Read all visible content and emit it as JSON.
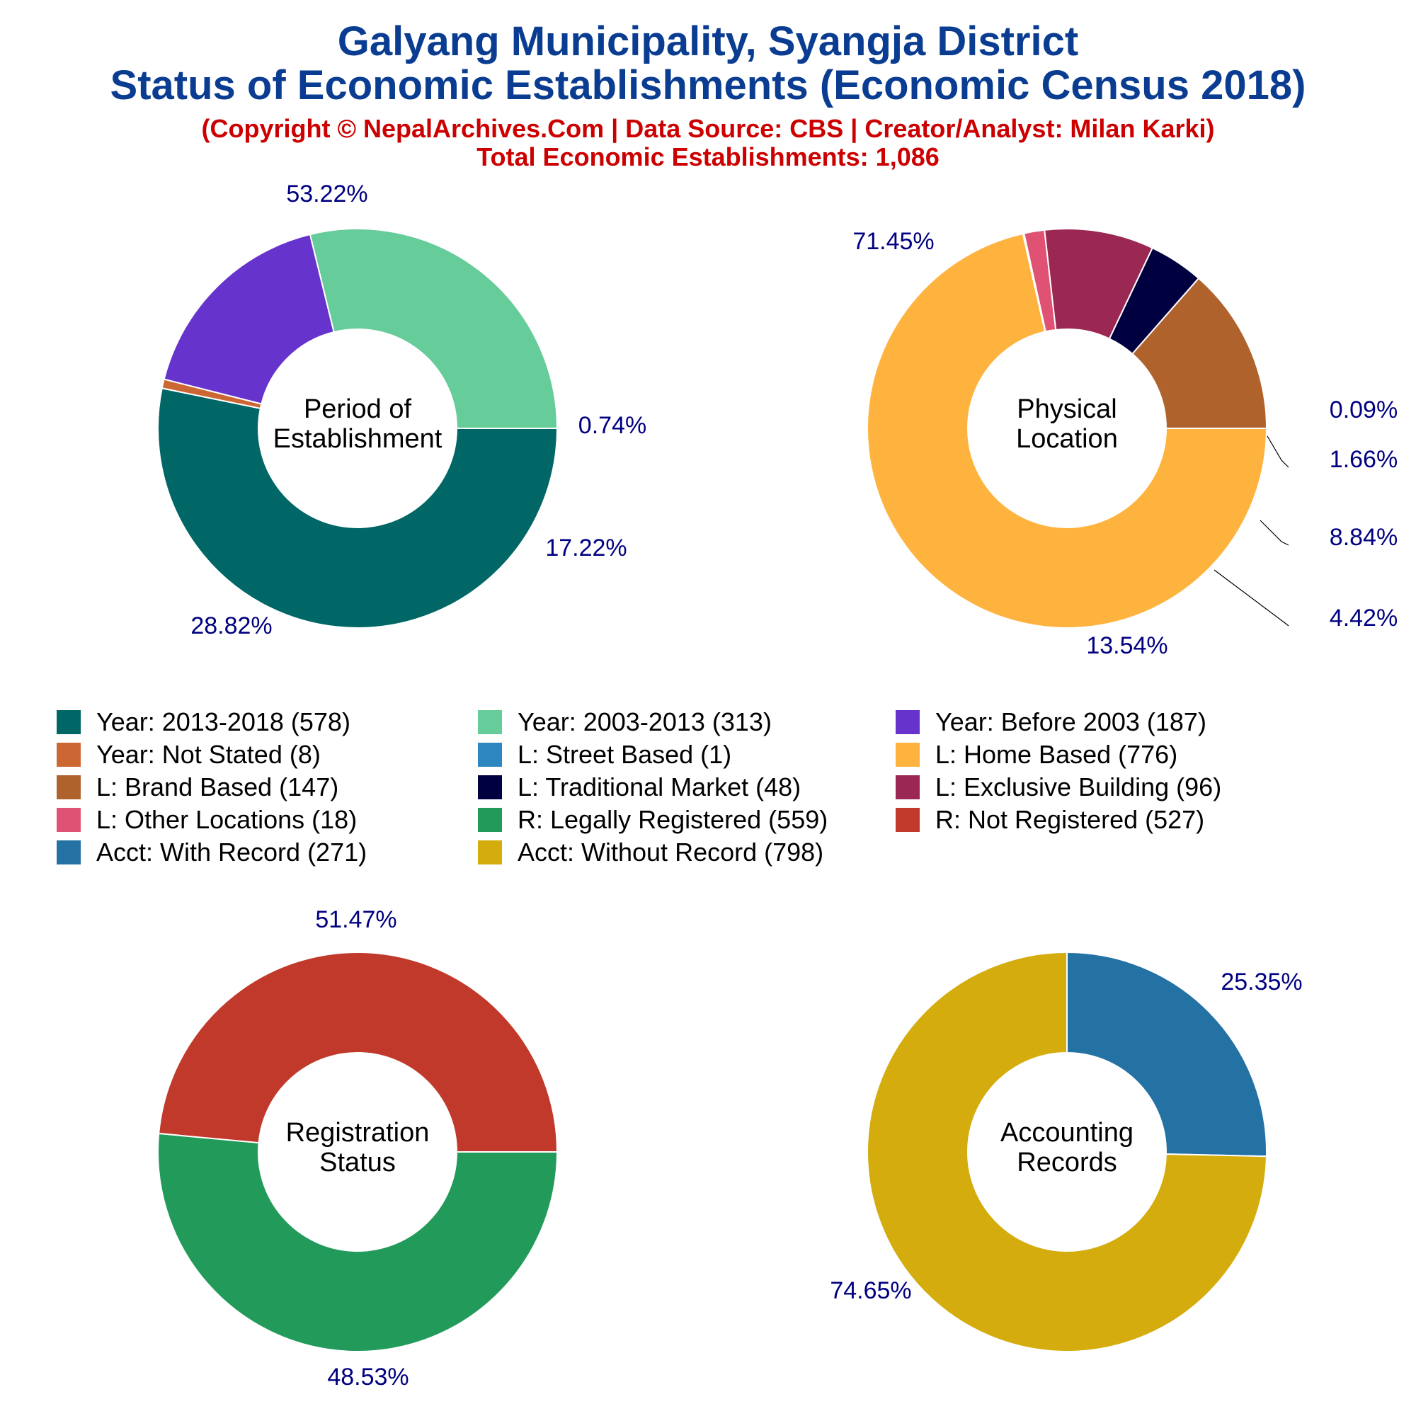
{
  "header": {
    "title_line1": "Galyang Municipality, Syangja District",
    "title_line2": "Status of Economic Establishments (Economic Census 2018)",
    "copyright": "(Copyright © NepalArchives.Com | Data Source: CBS | Creator/Analyst: Milan Karki)",
    "total": "Total Economic Establishments: 1,086"
  },
  "chart_data": [
    {
      "type": "pie",
      "title": "Period of Establishment",
      "center_label_lines": [
        "Period of",
        "Establishment"
      ],
      "labels": [
        "Year: 2013-2018",
        "Year: Not Stated",
        "Year: Before 2003",
        "Year: 2003-2013"
      ],
      "values": [
        578,
        8,
        187,
        313
      ],
      "percent_labels": [
        "53.22%",
        "0.74%",
        "17.22%",
        "28.82%"
      ],
      "colors": [
        "#006666",
        "#cc6633",
        "#6633cc",
        "#66cc99"
      ]
    },
    {
      "type": "pie",
      "title": "Physical Location",
      "center_label_lines": [
        "Physical",
        "Location"
      ],
      "labels": [
        "L: Home Based",
        "L: Street Based",
        "L: Other Locations",
        "L: Exclusive Building",
        "L: Traditional Market",
        "L: Brand Based"
      ],
      "values": [
        776,
        1,
        18,
        96,
        48,
        147
      ],
      "percent_labels": [
        "71.45%",
        "0.09%",
        "1.66%",
        "8.84%",
        "4.42%",
        "13.54%"
      ],
      "colors": [
        "#ffb33f",
        "#2e86c1",
        "#e05273",
        "#9b2753",
        "#000040",
        "#b0622c"
      ]
    },
    {
      "type": "pie",
      "title": "Registration Status",
      "center_label_lines": [
        "Registration",
        "Status"
      ],
      "labels": [
        "R: Legally Registered",
        "R: Not Registered"
      ],
      "values": [
        559,
        527
      ],
      "percent_labels": [
        "51.47%",
        "48.53%"
      ],
      "colors": [
        "#229a5a",
        "#c0392b"
      ]
    },
    {
      "type": "pie",
      "title": "Accounting Records",
      "center_label_lines": [
        "Accounting",
        "Records"
      ],
      "labels": [
        "Acct: With Record",
        "Acct: Without Record"
      ],
      "values": [
        271,
        798
      ],
      "percent_labels": [
        "25.35%",
        "74.65%"
      ],
      "colors": [
        "#2471a3",
        "#d4ac0d"
      ]
    }
  ],
  "legend": [
    {
      "label": "Year: 2013-2018 (578)",
      "color": "#006666"
    },
    {
      "label": "Year: 2003-2013 (313)",
      "color": "#66cc99"
    },
    {
      "label": "Year: Before 2003 (187)",
      "color": "#6633cc"
    },
    {
      "label": "Year: Not Stated (8)",
      "color": "#cc6633"
    },
    {
      "label": "L: Street Based (1)",
      "color": "#2e86c1"
    },
    {
      "label": "L: Home Based (776)",
      "color": "#ffb33f"
    },
    {
      "label": "L: Brand Based (147)",
      "color": "#b0622c"
    },
    {
      "label": "L: Traditional Market (48)",
      "color": "#000040"
    },
    {
      "label": "L: Exclusive Building (96)",
      "color": "#9b2753"
    },
    {
      "label": "L: Other Locations (18)",
      "color": "#e05273"
    },
    {
      "label": "R: Legally Registered (559)",
      "color": "#229a5a"
    },
    {
      "label": "R: Not Registered (527)",
      "color": "#c0392b"
    },
    {
      "label": "Acct: With Record (271)",
      "color": "#2471a3"
    },
    {
      "label": "Acct: Without Record (798)",
      "color": "#d4ac0d"
    }
  ],
  "colors": {
    "title": "#0a3d91",
    "subtitle": "#cc0000",
    "percent_label": "#000080"
  }
}
